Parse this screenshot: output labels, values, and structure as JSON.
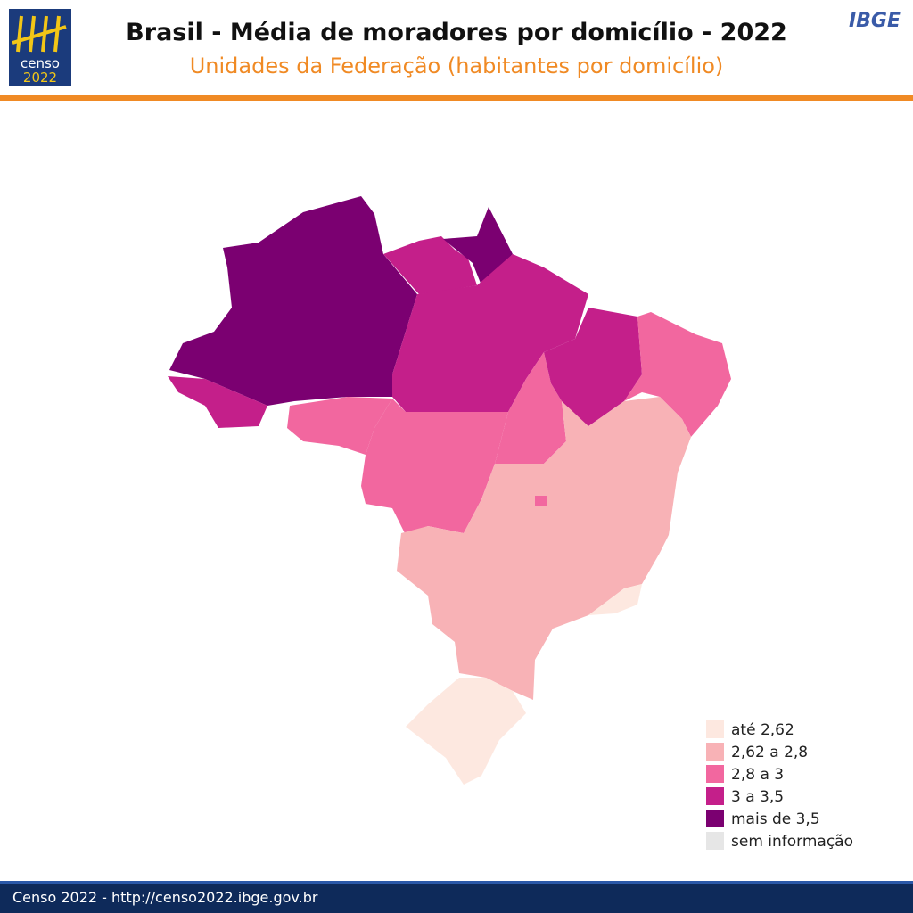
{
  "header": {
    "title": "Brasil - Média de moradores por domicílio - 2022",
    "subtitle": "Unidades da Federação (habitantes por domicílio)",
    "logo_word": "censo",
    "logo_year": "2022",
    "brand": "IBGE"
  },
  "legend": {
    "items": [
      {
        "label": "até 2,62",
        "color": "#fde8e0"
      },
      {
        "label": "2,62 a 2,8",
        "color": "#f8b2b6"
      },
      {
        "label": "2,8 a 3",
        "color": "#f2679f"
      },
      {
        "label": "3 a 3,5",
        "color": "#c41f8a"
      },
      {
        "label": "mais de 3,5",
        "color": "#7b0071"
      },
      {
        "label": "sem informação",
        "color": "#e6e6e6"
      }
    ]
  },
  "footer": {
    "text": "Censo 2022 - http://censo2022.ibge.gov.br"
  }
}
